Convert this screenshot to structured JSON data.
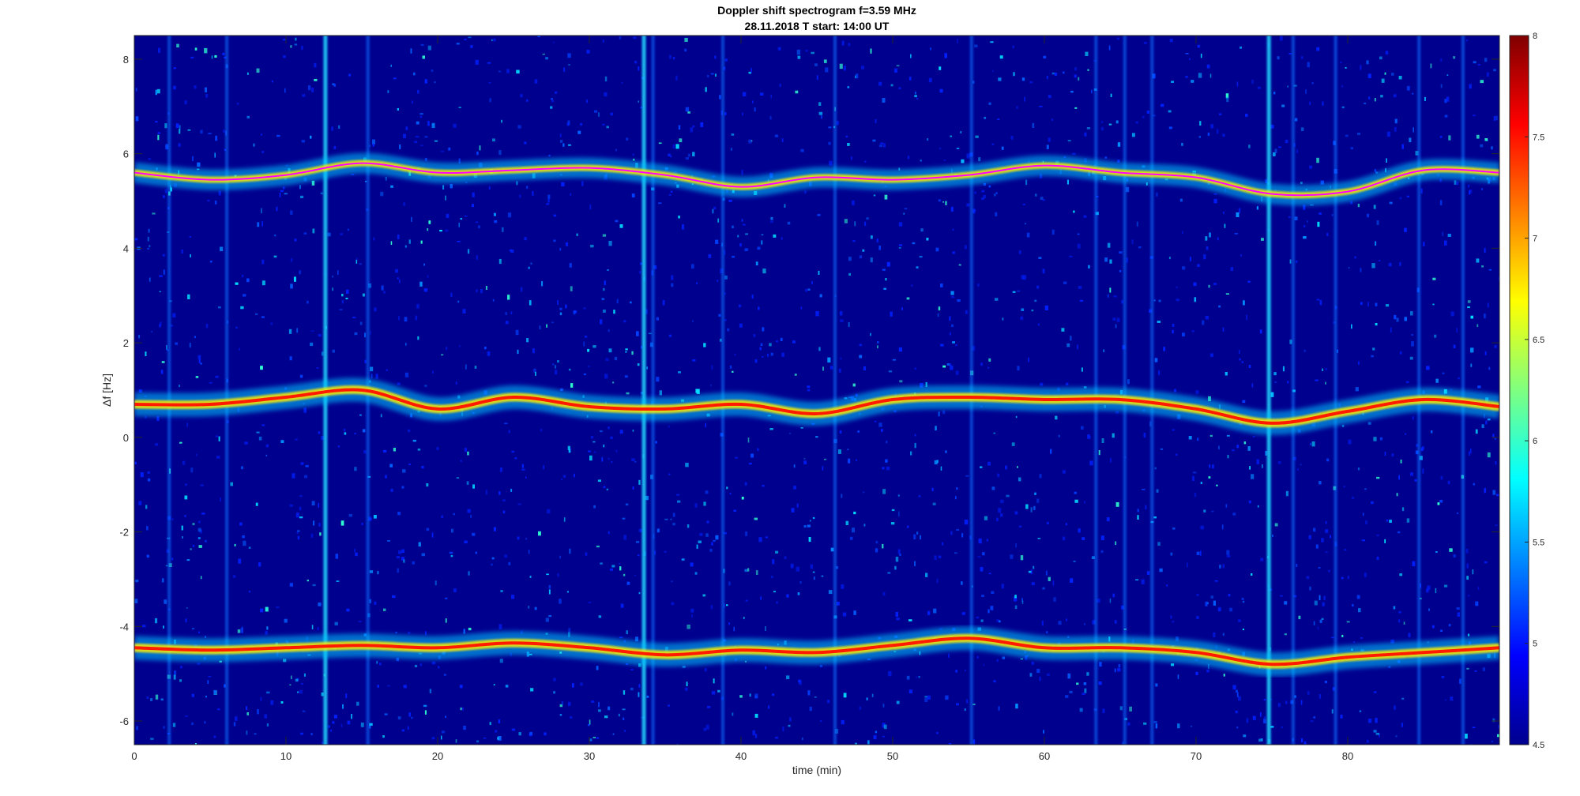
{
  "chart_data": {
    "type": "heatmap",
    "title": "Doppler shift spectrogram f=3.59 MHz",
    "subtitle": "28.11.2018   T start: 14:00 UT",
    "xlabel": "time (min)",
    "ylabel": "Δf [Hz]",
    "xlim": [
      0,
      90
    ],
    "ylim": [
      -6.5,
      8.5
    ],
    "xticks": [
      0,
      10,
      20,
      30,
      40,
      50,
      60,
      70,
      80
    ],
    "yticks": [
      -6,
      -4,
      -2,
      0,
      2,
      4,
      6,
      8
    ],
    "colorbar": {
      "range": [
        4.5,
        8
      ],
      "ticks": [
        4.5,
        5,
        5.5,
        6,
        6.5,
        7,
        7.5,
        8
      ],
      "colormap": "jet"
    },
    "grid": false,
    "series": [
      {
        "x": [
          0,
          5,
          10,
          15,
          20,
          25,
          30,
          35,
          40,
          45,
          50,
          55,
          60,
          65,
          70,
          75,
          80,
          85,
          90
        ],
        "y": [
          5.6,
          5.45,
          5.55,
          5.8,
          5.6,
          5.65,
          5.7,
          5.55,
          5.3,
          5.5,
          5.45,
          5.55,
          5.75,
          5.6,
          5.5,
          5.15,
          5.2,
          5.65,
          5.6
        ]
      },
      {
        "x": [
          0,
          5,
          10,
          15,
          20,
          25,
          30,
          35,
          40,
          45,
          50,
          55,
          60,
          65,
          70,
          75,
          80,
          85,
          90
        ],
        "y": [
          0.7,
          0.7,
          0.85,
          1.0,
          0.6,
          0.85,
          0.65,
          0.6,
          0.7,
          0.5,
          0.8,
          0.85,
          0.8,
          0.8,
          0.6,
          0.3,
          0.55,
          0.8,
          0.65
        ]
      },
      {
        "x": [
          0,
          5,
          10,
          15,
          20,
          25,
          30,
          35,
          40,
          45,
          50,
          55,
          60,
          65,
          70,
          75,
          80,
          85,
          90
        ],
        "y": [
          -4.45,
          -4.5,
          -4.45,
          -4.4,
          -4.45,
          -4.35,
          -4.45,
          -4.6,
          -4.5,
          -4.55,
          -4.4,
          -4.25,
          -4.45,
          -4.45,
          -4.55,
          -4.8,
          -4.65,
          -4.55,
          -4.45
        ]
      }
    ],
    "broadband_streaks_x": [
      2.3,
      6.1,
      12.6,
      15.4,
      33.6,
      34.2,
      38.8,
      46.2,
      55.2,
      63.4,
      65.3,
      67.1,
      74.8,
      76.4,
      79.2,
      84.7,
      87.6
    ],
    "colors": {
      "background_cmap_min": "#00008f",
      "ridge_peak": "#ff1a00",
      "trace_overlay": "#ff00ff"
    }
  }
}
